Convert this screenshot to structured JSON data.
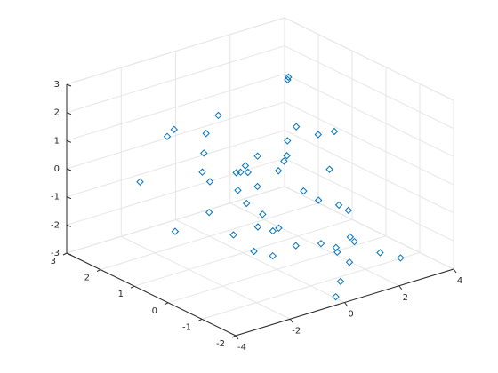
{
  "chart_data": {
    "type": "scatter3d",
    "color": "#0072bd",
    "grid": true,
    "x": [
      -0.5,
      1.2,
      -1.8,
      0.3,
      2.1,
      -0.9,
      1.5,
      -2.3,
      0.8,
      -0.2,
      1.9,
      -1.1,
      0.5,
      2.6,
      -0.7,
      0.1,
      1.1,
      -1.5,
      2.9,
      -0.4,
      0.9,
      -2.0,
      1.6,
      0.2,
      -1.2,
      2.3,
      -0.1,
      1.3,
      -0.8,
      0.6,
      3.0,
      -1.6,
      0.4,
      1.8,
      -0.3,
      2.5,
      -1.0,
      0.7,
      1.4,
      -2.5,
      0.0,
      2.0,
      -0.6,
      1.0,
      -1.3,
      2.8,
      0.3,
      -0.9,
      1.7,
      -0.2
    ],
    "y": [
      0.5,
      -1.2,
      1.8,
      0.2,
      1.4,
      -0.6,
      0.9,
      2.2,
      -1.5,
      0.7,
      -0.3,
      1.1,
      -0.9,
      0.4,
      1.6,
      -1.8,
      0.1,
      0.8,
      2.0,
      -0.2,
      1.3,
      0.6,
      -1.0,
      1.9,
      -0.4,
      0.3,
      1.0,
      -0.7,
      2.4,
      -1.3,
      1.2,
      0.0,
      0.9,
      -1.6,
      -0.8,
      1.7,
      0.4,
      1.5,
      -0.1,
      1.0,
      2.1,
      -0.5,
      0.2,
      0.6,
      -1.1,
      -1.4,
      1.4,
      -0.3,
      0.8,
      -1.9
    ],
    "z": [
      -0.8,
      -1.5,
      1.2,
      0.3,
      -0.4,
      -1.9,
      0.6,
      -0.5,
      -2.1,
      0.1,
      -1.1,
      -0.2,
      -1.7,
      0.9,
      0.4,
      -2.4,
      -0.6,
      -1.0,
      1.8,
      -1.4,
      0.0,
      0.7,
      -1.9,
      1.3,
      -0.9,
      -0.3,
      -0.1,
      -2.2,
      0.8,
      -1.8,
      0.2,
      -1.3,
      -0.7,
      -2.0,
      -1.6,
      2.0,
      0.5,
      -0.4,
      -0.9,
      -1.5,
      0.6,
      -1.2,
      -2.3,
      0.2,
      -0.5,
      -2.6,
      -1.1,
      -0.6,
      1.1,
      -2.8
    ],
    "xlim": [
      -4,
      4
    ],
    "xticks": [
      -4,
      -2,
      0,
      2,
      4
    ],
    "ylim": [
      -2,
      3
    ],
    "yticks": [
      -2,
      -1,
      0,
      1,
      2,
      3
    ],
    "zlim": [
      -3,
      3
    ],
    "zticks": [
      -3,
      -2,
      -1,
      0,
      1,
      2,
      3
    ]
  }
}
